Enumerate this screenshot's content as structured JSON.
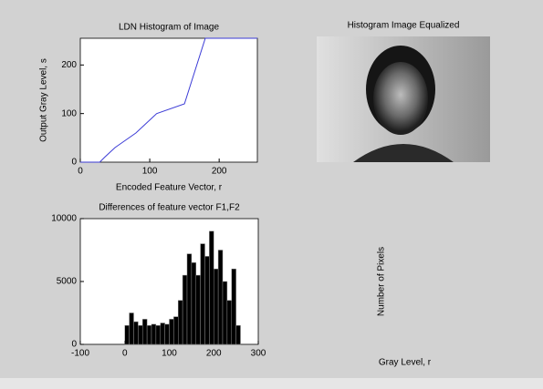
{
  "chart_data": [
    {
      "type": "line",
      "title": "LDN Histogram of Image",
      "xlabel": "Encoded Feature Vector, r",
      "ylabel": "Output Gray Level, s",
      "x": [
        0,
        28,
        35,
        50,
        80,
        110,
        150,
        180,
        255
      ],
      "series": [
        {
          "color": "#3b3bd6",
          "values": [
            0,
            0,
            10,
            30,
            60,
            100,
            120,
            255,
            255
          ]
        }
      ],
      "xlim": [
        0,
        255
      ],
      "xticks": [
        0,
        100,
        200
      ],
      "ylim": [
        0,
        255
      ],
      "yticks": [
        0,
        100,
        200
      ]
    },
    {
      "type": "image",
      "title": "Histogram Image Equalized"
    },
    {
      "type": "histogram",
      "title": "Differences of feature vector F1,F2",
      "color": "#000000",
      "bins": [
        0,
        10,
        20,
        30,
        40,
        50,
        60,
        70,
        80,
        90,
        100,
        110,
        120,
        130,
        140,
        150,
        160,
        170,
        180,
        190,
        200,
        210,
        220,
        230,
        240,
        250,
        260
      ],
      "values": [
        1500,
        2500,
        1800,
        1500,
        2000,
        1500,
        1600,
        1500,
        1700,
        1600,
        2000,
        2200,
        3500,
        5500,
        7200,
        6500,
        5500,
        8000,
        7000,
        9000,
        6000,
        7500,
        5000,
        3500,
        6000,
        1500
      ],
      "xlim": [
        -100,
        300
      ],
      "xticks": [
        -100,
        0,
        100,
        200,
        300
      ],
      "ylim": [
        0,
        10000
      ],
      "yticks": [
        0,
        5000,
        10000
      ]
    },
    {
      "type": "empty",
      "xlabel": "Gray Level, r",
      "ylabel": "Number of Pixels"
    }
  ]
}
